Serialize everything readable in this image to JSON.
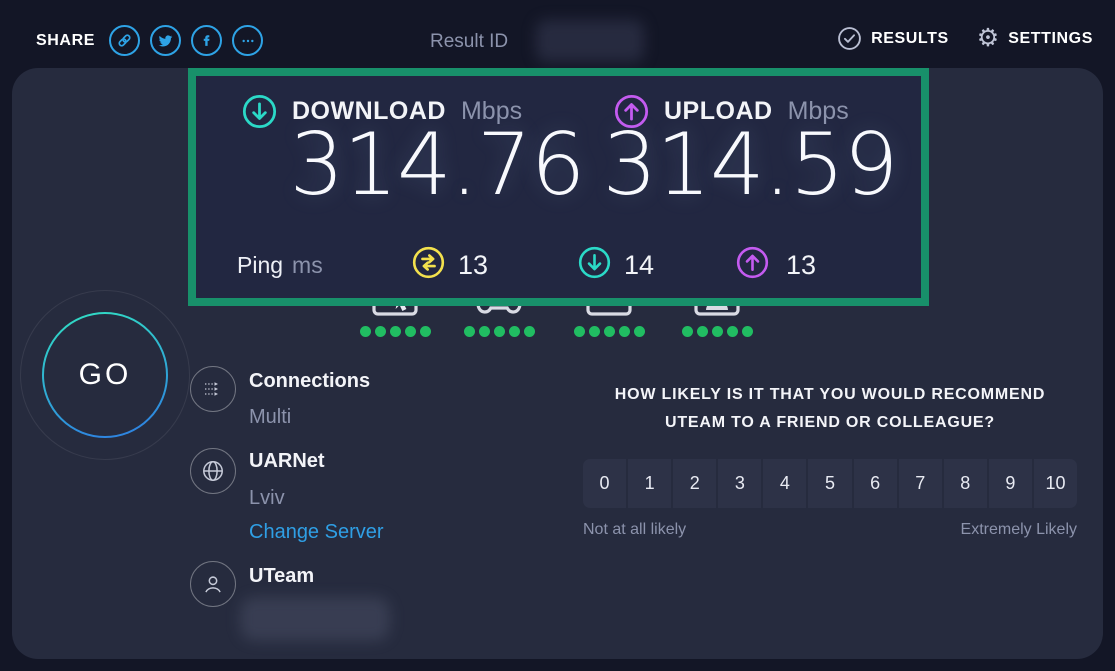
{
  "header": {
    "share_label": "SHARE",
    "result_id_label": "Result ID",
    "results_label": "RESULTS",
    "settings_label": "SETTINGS"
  },
  "icons": {
    "share": [
      "link-icon",
      "twitter-icon",
      "facebook-icon",
      "more-icon"
    ],
    "results": "check-circle-icon",
    "settings": "gear-icon",
    "download": "circle-arrow-down-icon",
    "upload": "circle-arrow-up-icon",
    "ping_idle": "circle-swap-arrows-icon",
    "quality": [
      "browser-icon",
      "gamepad-icon",
      "streaming-icon",
      "video-call-icon"
    ],
    "connections": "multi-arrows-icon",
    "server": "globe-icon",
    "isp": "user-icon"
  },
  "result": {
    "download": {
      "label": "DOWNLOAD",
      "unit": "Mbps",
      "value": "314.76"
    },
    "upload": {
      "label": "UPLOAD",
      "unit": "Mbps",
      "value": "314.59"
    },
    "ping": {
      "label": "Ping",
      "unit": "ms",
      "idle": "13",
      "download": "14",
      "upload": "13"
    }
  },
  "quality_ratings": [
    {
      "name": "browsing",
      "score": 5
    },
    {
      "name": "gaming",
      "score": 5
    },
    {
      "name": "streaming",
      "score": 5
    },
    {
      "name": "video",
      "score": 5
    }
  ],
  "go_button": {
    "label": "GO"
  },
  "connection": {
    "connections_label": "Connections",
    "connections_value": "Multi",
    "server_name": "UARNet",
    "server_location": "Lviv",
    "change_server_label": "Change Server",
    "isp_name": "UTeam"
  },
  "survey": {
    "question_line1": "HOW LIKELY IS IT THAT YOU WOULD RECOMMEND",
    "question_line2": "UTEAM TO A FRIEND OR COLLEAGUE?",
    "scale": [
      "0",
      "1",
      "2",
      "3",
      "4",
      "5",
      "6",
      "7",
      "8",
      "9",
      "10"
    ],
    "min_label": "Not at all likely",
    "max_label": "Extremely Likely"
  },
  "colors": {
    "background": "#131626",
    "panel": "#262b3e",
    "highlight_border": "#18906a",
    "download_cyan": "#2bd9c7",
    "upload_purple": "#c45bf0",
    "ping_yellow": "#f3e14d",
    "social_blue": "#2ea3e6",
    "link_blue": "#2f9fe5",
    "rating_dot_green": "#21bd62"
  }
}
